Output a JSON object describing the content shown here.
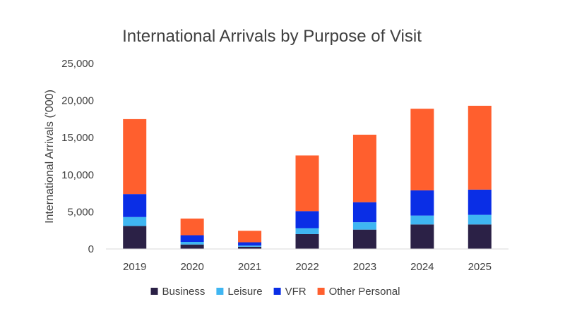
{
  "chart_data": {
    "type": "bar",
    "stacked": true,
    "title": "International Arrivals by Purpose of Visit",
    "xlabel": "",
    "ylabel": "International Arrivals ('000)",
    "ylim": [
      0,
      25000
    ],
    "yticks": [
      0,
      5000,
      10000,
      15000,
      20000,
      25000
    ],
    "ytick_labels": [
      "0",
      "5,000",
      "10,000",
      "15,000",
      "20,000",
      "25,000"
    ],
    "grid": false,
    "legend_position": "bottom",
    "categories": [
      "2019",
      "2020",
      "2021",
      "2022",
      "2023",
      "2024",
      "2025"
    ],
    "series": [
      {
        "name": "Business",
        "color": "#2b2146",
        "values": [
          3100,
          600,
          300,
          2000,
          2600,
          3300,
          3300
        ]
      },
      {
        "name": "Leisure",
        "color": "#3fb6f2",
        "values": [
          1200,
          350,
          150,
          800,
          1000,
          1200,
          1300
        ]
      },
      {
        "name": "VFR",
        "color": "#0a2ee6",
        "values": [
          3100,
          900,
          450,
          2300,
          2700,
          3400,
          3400
        ]
      },
      {
        "name": "Other Personal",
        "color": "#ff5f2e",
        "values": [
          10100,
          2250,
          1550,
          7500,
          9100,
          11000,
          11300
        ]
      }
    ]
  }
}
